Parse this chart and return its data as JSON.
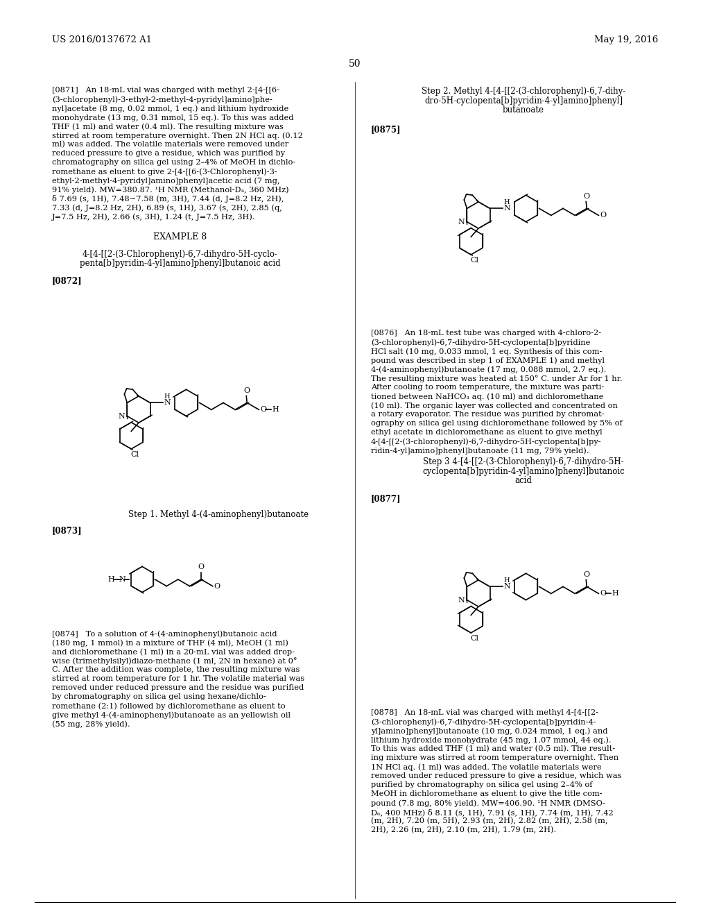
{
  "background_color": "#ffffff",
  "header_left": "US 2016/0137672 A1",
  "header_right": "May 19, 2016",
  "page_number": "50",
  "para_0871_lines": [
    "[0871]   An 18-mL vial was charged with methyl 2-[4-[[6-",
    "(3-chlorophenyl)-3-ethyl-2-methyl-4-pyridyl]amino]phe-",
    "nyl]acetate (8 mg, 0.02 mmol, 1 eq.) and lithium hydroxide",
    "monohydrate (13 mg, 0.31 mmol, 15 eq.). To this was added",
    "THF (1 ml) and water (0.4 ml). The resulting mixture was",
    "stirred at room temperature overnight. Then 2N HCl aq. (0.12",
    "ml) was added. The volatile materials were removed under",
    "reduced pressure to give a residue, which was purified by",
    "chromatography on silica gel using 2–4% of MeOH in dichlo-",
    "romethane as eluent to give 2-[4-[[6-(3-Chlorophenyl)-3-",
    "ethyl-2-methyl-4-pyridyl]amino]phenyl]acetic acid (7 mg,",
    "91% yield). MW=380.87. ¹H NMR (Methanol-D₄, 360 MHz)",
    "δ 7.69 (s, 1H), 7.48~7.58 (m, 3H), 7.44 (d, J=8.2 Hz, 2H),",
    "7.33 (d, J=8.2 Hz, 2H), 6.89 (s, 1H), 3.67 (s, 2H), 2.85 (q,",
    "J=7.5 Hz, 2H), 2.66 (s, 3H), 1.24 (t, J=7.5 Hz, 3H)."
  ],
  "example8_title": "EXAMPLE 8",
  "compound_name_lines": [
    "4-[4-[[2-(3-Chlorophenyl)-6,7-dihydro-5H-cyclo-",
    "penta[b]pyridin-4-yl]amino]phenyl]butanoic acid"
  ],
  "label_0872": "[0872]",
  "step1_title": "Step 1. Methyl 4-(4-aminophenyl)butanoate",
  "label_0873": "[0873]",
  "para_0874_lines": [
    "[0874]   To a solution of 4-(4-aminophenyl)butanoic acid",
    "(180 mg, 1 mmol) in a mixture of THF (4 ml), MeOH (1 ml)",
    "and dichloromethane (1 ml) in a 20-mL vial was added drop-",
    "wise (trimethylsilyl)diazo-methane (1 ml, 2N in hexane) at 0°",
    "C. After the addition was complete, the resulting mixture was",
    "stirred at room temperature for 1 hr. The volatile material was",
    "removed under reduced pressure and the residue was purified",
    "by chromatography on silica gel using hexane/dichlo-",
    "romethane (2:1) followed by dichloromethane as eluent to",
    "give methyl 4-(4-aminophenyl)butanoate as an yellowish oil",
    "(55 mg, 28% yield)."
  ],
  "step2_title_lines": [
    "Step 2. Methyl 4-[4-[[2-(3-chlorophenyl)-6,7-dihy-",
    "dro-5H-cyclopenta[b]pyridin-4-yl]amino]phenyl]",
    "butanoate"
  ],
  "label_0875": "[0875]",
  "para_0876_lines": [
    "[0876]   An 18-mL test tube was charged with 4-chloro-2-",
    "(3-chlorophenyl)-6,7-dihydro-5H-cyclopenta[b]pyridine",
    "HCl salt (10 mg, 0.033 mmol, 1 eq. Synthesis of this com-",
    "pound was described in step 1 of EXAMPLE 1) and methyl",
    "4-(4-aminophenyl)butanoate (17 mg, 0.088 mmol, 2.7 eq.).",
    "The resulting mixture was heated at 150° C. under Ar for 1 hr.",
    "After cooling to room temperature, the mixture was parti-",
    "tioned between NaHCO₃ aq. (10 ml) and dichloromethane",
    "(10 ml). The organic layer was collected and concentrated on",
    "a rotary evaporator. The residue was purified by chromat-",
    "ography on silica gel using dichloromethane followed by 5% of",
    "ethyl acetate in dichloromethane as eluent to give methyl",
    "4-[4-[[2-(3-chlorophenyl)-6,7-dihydro-5H-cyclopenta[b]py-",
    "ridin-4-yl]amino]phenyl]butanoate (11 mg, 79% yield)."
  ],
  "step3_title_lines": [
    "Step 3 4-[4-[[2-(3-Chlorophenyl)-6,7-dihydro-5H-",
    "cyclopenta[b]pyridin-4-yl]amino]phenyl]butanoic",
    "acid"
  ],
  "label_0877": "[0877]",
  "para_0878_lines": [
    "[0878]   An 18-mL vial was charged with methyl 4-[4-[[2-",
    "(3-chlorophenyl)-6,7-dihydro-5H-cyclopenta[b]pyridin-4-",
    "yl]amino]phenyl]butanoate (10 mg, 0.024 mmol, 1 eq.) and",
    "lithium hydroxide monohydrate (45 mg, 1.07 mmol, 44 eq.).",
    "To this was added THF (1 ml) and water (0.5 ml). The result-",
    "ing mixture was stirred at room temperature overnight. Then",
    "1N HCl aq. (1 ml) was added. The volatile materials were",
    "removed under reduced pressure to give a residue, which was",
    "purified by chromatography on silica gel using 2–4% of",
    "MeOH in dichloromethane as eluent to give the title com-",
    "pound (7.8 mg, 80% yield). MW=406.90. ¹H NMR (DMSO-",
    "D₆, 400 MHz) δ 8.11 (s, 1H), 7.91 (s, 1H), 7.74 (m, 1H), 7.42",
    "(m, 2H), 7.20 (m, 5H), 2.93 (m, 2H), 2.82 (m, 2H), 2.58 (m,",
    "2H), 2.26 (m, 2H), 2.10 (m, 2H), 1.79 (m, 2H)."
  ]
}
